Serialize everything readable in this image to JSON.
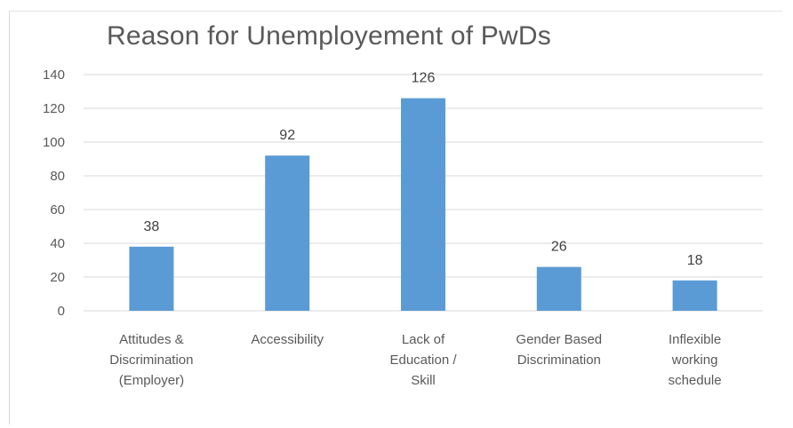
{
  "chart_data": {
    "type": "bar",
    "title": "Reason for Unemployement of PwDs",
    "xlabel": "",
    "ylabel": "",
    "categories": [
      "Attitudes & Discrimination (Employer)",
      "Accessibility",
      "Lack of Education / Skill",
      "Gender Based Discrimination",
      "Inflexible working schedule"
    ],
    "category_lines": [
      [
        "Attitudes &",
        "Discrimination",
        "(Employer)"
      ],
      [
        "Accessibility"
      ],
      [
        "Lack of",
        "Education /",
        "Skill"
      ],
      [
        "Gender Based",
        "Discrimination"
      ],
      [
        "Inflexible",
        "working",
        "schedule"
      ]
    ],
    "values": [
      38,
      92,
      126,
      26,
      18
    ],
    "data_labels": [
      "38",
      "92",
      "126",
      "26",
      "18"
    ],
    "ylim": [
      0,
      140
    ],
    "yticks": [
      "0",
      "20",
      "40",
      "60",
      "80",
      "100",
      "120",
      "140"
    ],
    "grid": true,
    "legend": "none",
    "bar_color": "#5b9bd5",
    "grid_color": "#d9d9d9"
  }
}
